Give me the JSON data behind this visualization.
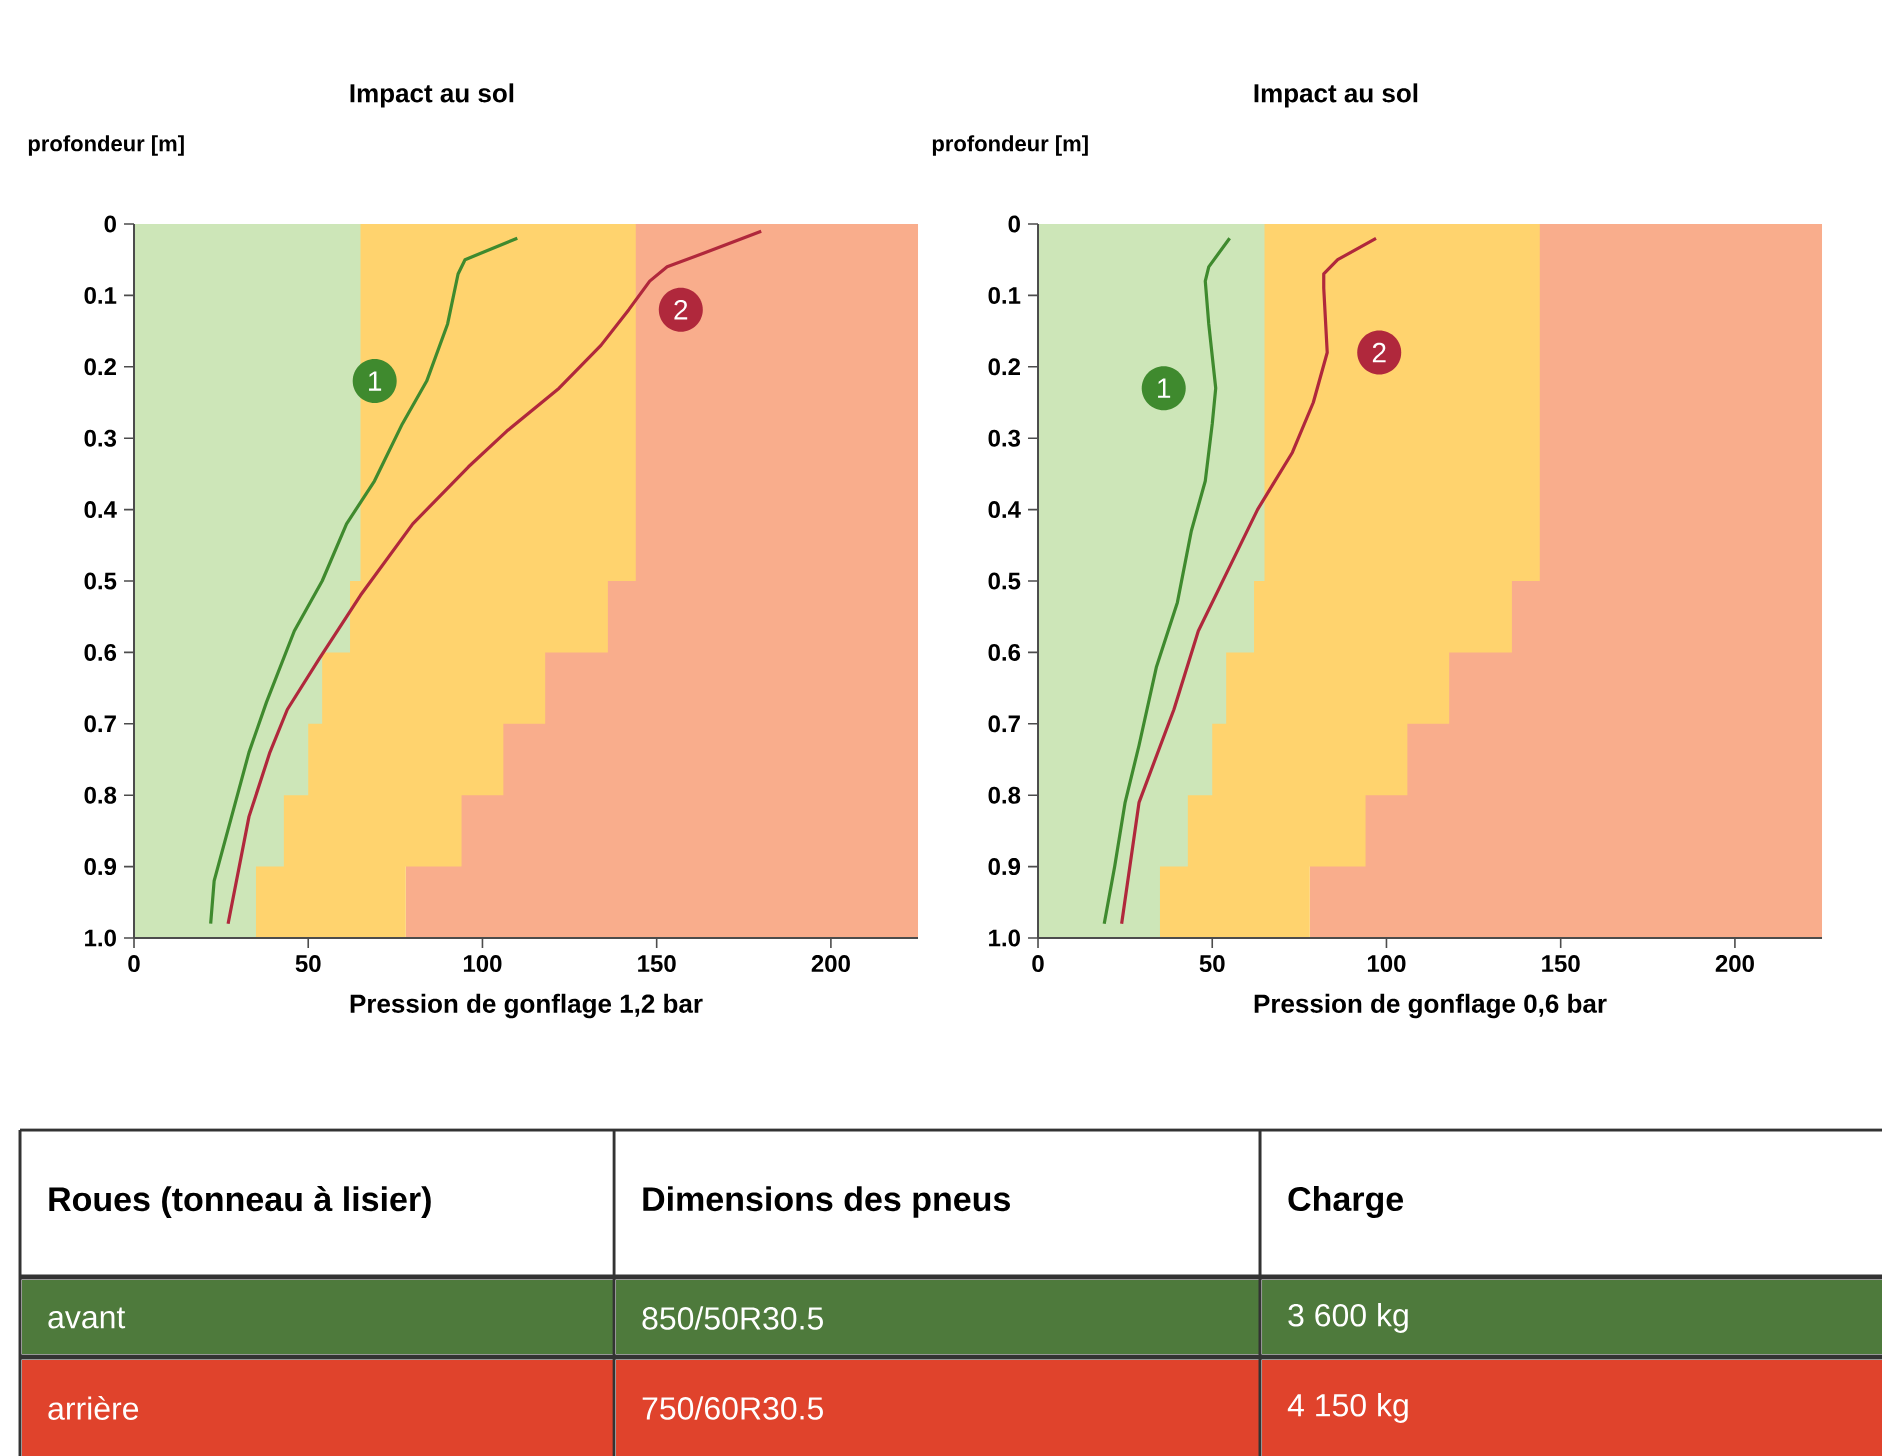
{
  "chart_data": [
    {
      "type": "line",
      "title": "Impact au sol",
      "ylabel": "profondeur [m]",
      "xlabel": "Pression de gonflage 1,2 bar",
      "xlim": [
        0,
        225
      ],
      "ylim": [
        1.0,
        0
      ],
      "bands": [
        {
          "axis": "x",
          "from": 78,
          "to": 225,
          "color": "#f9ad8c"
        }
      ],
      "xticks": [
        0,
        50,
        100,
        150,
        200
      ],
      "yticks": [
        0,
        0.1,
        0.2,
        0.3,
        0.4,
        0.5,
        0.6,
        0.7,
        0.8,
        0.9,
        {
          "value": 1.0,
          "label": "1.0"
        }
      ],
      "series": [
        {
          "type": "area",
          "color": "#ffd36e",
          "x": [
            0,
            144,
            144,
            136,
            136,
            118,
            118,
            106,
            106,
            94,
            94,
            78,
            78,
            0
          ],
          "values": [
            0,
            0,
            0.5,
            0.5,
            0.6,
            0.6,
            0.7,
            0.7,
            0.8,
            0.8,
            0.9,
            0.9,
            1.0,
            1.0
          ]
        },
        {
          "type": "area",
          "color": "#cde6b8",
          "x": [
            0,
            65,
            65,
            62,
            62,
            54,
            54,
            50,
            50,
            43,
            43,
            35,
            35,
            0
          ],
          "values": [
            0,
            0,
            0.5,
            0.5,
            0.6,
            0.6,
            0.7,
            0.7,
            0.8,
            0.8,
            0.9,
            0.9,
            1.0,
            1.0
          ]
        },
        {
          "name": "1",
          "color": "#3f8a2e",
          "x": [
            110,
            95,
            93,
            90,
            84,
            77,
            69,
            61,
            54,
            46,
            38,
            33,
            28,
            23,
            22
          ],
          "values": [
            0.02,
            0.05,
            0.07,
            0.14,
            0.22,
            0.28,
            0.36,
            0.42,
            0.5,
            0.57,
            0.67,
            0.74,
            0.83,
            0.92,
            0.98
          ]
        },
        {
          "name": "2",
          "color": "#b0283c",
          "x": [
            180,
            164,
            153,
            148,
            142,
            134,
            122,
            107,
            96,
            80,
            65,
            53,
            44,
            39,
            33,
            27
          ],
          "values": [
            0.01,
            0.04,
            0.06,
            0.08,
            0.12,
            0.17,
            0.23,
            0.29,
            0.34,
            0.42,
            0.52,
            0.61,
            0.68,
            0.74,
            0.83,
            0.98
          ]
        }
      ]
    },
    {
      "type": "line",
      "title": "Impact au sol",
      "ylabel": "profondeur [m]",
      "xlabel": "Pression de gonflage 0,6 bar",
      "xlim": [
        0,
        225
      ],
      "ylim": [
        1.0,
        0
      ],
      "bands": [
        {
          "axis": "x",
          "from": 78,
          "to": 225,
          "color": "#f9ad8c"
        }
      ],
      "xticks": [
        0,
        50,
        100,
        150,
        200
      ],
      "yticks": [
        0,
        0.1,
        0.2,
        0.3,
        0.4,
        0.5,
        0.6,
        0.7,
        0.8,
        0.9,
        {
          "value": 1.0,
          "label": "1.0"
        }
      ],
      "series": [
        {
          "type": "area",
          "color": "#ffd36e",
          "x": [
            0,
            144,
            144,
            136,
            136,
            118,
            118,
            106,
            106,
            94,
            94,
            78,
            78,
            0
          ],
          "values": [
            0,
            0,
            0.5,
            0.5,
            0.6,
            0.6,
            0.7,
            0.7,
            0.8,
            0.8,
            0.9,
            0.9,
            1.0,
            1.0
          ]
        },
        {
          "type": "area",
          "color": "#cde6b8",
          "x": [
            0,
            65,
            65,
            62,
            62,
            54,
            54,
            50,
            50,
            43,
            43,
            35,
            35,
            0
          ],
          "values": [
            0,
            0,
            0.5,
            0.5,
            0.6,
            0.6,
            0.7,
            0.7,
            0.8,
            0.8,
            0.9,
            0.9,
            1.0,
            1.0
          ]
        },
        {
          "name": "1",
          "color": "#3f8a2e",
          "x": [
            55,
            49,
            48,
            49,
            51,
            50,
            48,
            44,
            40,
            34,
            29,
            25,
            22,
            19
          ],
          "values": [
            0.02,
            0.06,
            0.08,
            0.14,
            0.23,
            0.28,
            0.36,
            0.43,
            0.53,
            0.62,
            0.73,
            0.81,
            0.9,
            0.98
          ]
        },
        {
          "name": "2",
          "color": "#b0283c",
          "x": [
            97,
            86,
            82,
            82,
            83,
            79,
            73,
            63,
            54,
            46,
            39,
            29,
            24
          ],
          "values": [
            0.02,
            0.05,
            0.07,
            0.09,
            0.18,
            0.25,
            0.32,
            0.4,
            0.49,
            0.57,
            0.68,
            0.81,
            0.98
          ]
        }
      ]
    },
    {
      "type": "other",
      "colors": [
        "#ffffff",
        "#4e7a3c",
        "#e0432c"
      ],
      "annotations": [
        "Roues (tonneau à lisier)",
        "Dimensions des pneus",
        "Charge",
        "avant",
        "850/50R30.5",
        "3 600 kg",
        "arrière",
        "750/60R30.5",
        "4 150 kg"
      ]
    }
  ]
}
